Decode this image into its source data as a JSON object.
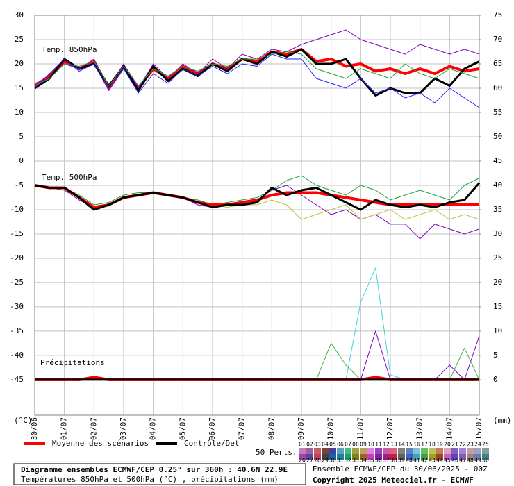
{
  "chart_data": {
    "type": "line",
    "panel_labels": [
      "Temp. 850hPa",
      "Temp. 500hPa",
      "Précipitations"
    ],
    "ylabel": "(°C)",
    "y2label": "(mm)",
    "categories": [
      "30/06",
      null,
      "01/07",
      null,
      "02/07",
      null,
      "03/07",
      null,
      "04/07",
      null,
      "05/07",
      null,
      "06/07",
      null,
      "07/07",
      null,
      "08/07",
      null,
      "09/07",
      null,
      "10/07",
      null,
      "11/07",
      null,
      "12/07",
      null,
      "13/07",
      null,
      "14/07",
      null,
      "15/07"
    ],
    "ylim": [
      -52.3,
      30
    ],
    "yticks": [
      30,
      25,
      20,
      15,
      10,
      5,
      0,
      -5,
      -10,
      -15,
      -20,
      -25,
      -30,
      -35,
      -40,
      -45
    ],
    "y2lim": [
      -7.3,
      75
    ],
    "y2ticks": [
      75,
      70,
      65,
      60,
      55,
      50,
      45,
      40,
      35,
      30,
      25,
      20,
      15,
      10,
      5,
      0
    ],
    "grid": true,
    "legend": [
      {
        "label": "Moyenne des scénarios",
        "color": "#ff0000"
      },
      {
        "label": "Contrôle/Det",
        "color": "#000000"
      }
    ],
    "series": [
      {
        "color": "#ff0000",
        "width": 4,
        "values": [
          15.5,
          17.5,
          20.5,
          19,
          20.5,
          15,
          19.5,
          15,
          19,
          17,
          19.5,
          18,
          20,
          19,
          21,
          20.5,
          22.5,
          22,
          23,
          20.5,
          21,
          19.5,
          20,
          18.5,
          19,
          18,
          19,
          18,
          19.5,
          18.5,
          19
        ]
      },
      {
        "color": "#000000",
        "width": 3,
        "values": [
          15,
          17,
          21,
          19,
          20,
          15.5,
          19.5,
          14.5,
          19.5,
          16.5,
          19,
          17.5,
          20,
          18.5,
          21,
          20,
          22.5,
          21.5,
          23,
          20,
          20,
          21,
          17,
          13.5,
          15,
          14,
          14,
          17,
          15.5,
          19,
          20.5
        ]
      },
      {
        "color": "#8000c0",
        "width": 1,
        "values": [
          16,
          17,
          20,
          19,
          21,
          15,
          20,
          15,
          20,
          17,
          20,
          18,
          21,
          19,
          22,
          21,
          23,
          22.5,
          24,
          25,
          26,
          27,
          25,
          24,
          23,
          22,
          24,
          23,
          22,
          23,
          22
        ]
      },
      {
        "color": "#2020ff",
        "width": 1,
        "values": [
          15,
          18,
          21,
          18.5,
          20,
          14.5,
          19,
          14,
          18,
          16,
          19,
          17.5,
          19.5,
          18,
          20,
          19.5,
          22,
          21,
          21,
          17,
          16,
          15,
          17,
          14,
          15,
          13,
          14,
          12,
          15,
          13,
          11
        ]
      },
      {
        "color": "#20a040",
        "width": 1,
        "values": [
          15.5,
          17,
          20,
          19.5,
          20.5,
          15.5,
          19.5,
          15.5,
          19,
          17.5,
          19.5,
          18.5,
          20,
          19.5,
          21,
          21,
          22,
          22.5,
          22,
          19,
          18,
          17,
          19,
          18,
          17,
          20,
          18,
          17,
          19,
          18,
          17
        ]
      },
      {
        "color": "#8000c0",
        "width": 1,
        "values": [
          -5,
          -5.5,
          -6,
          -8,
          -9.5,
          -9,
          -7.5,
          -7,
          -6.5,
          -7,
          -7.5,
          -9,
          -9.5,
          -9,
          -8.5,
          -8,
          -6,
          -5,
          -7,
          -9,
          -11,
          -10,
          -12,
          -11,
          -13,
          -13,
          -16,
          -13,
          -14,
          -15,
          -14
        ]
      },
      {
        "color": "#20a040",
        "width": 1,
        "values": [
          -5,
          -5.5,
          -5.5,
          -7,
          -9,
          -8.5,
          -7,
          -6.5,
          -6.5,
          -7,
          -7.5,
          -8,
          -9,
          -8.5,
          -8,
          -7.5,
          -6,
          -4,
          -3,
          -5,
          -6,
          -7,
          -5,
          -6,
          -8,
          -7,
          -6,
          -7,
          -8,
          -5,
          -3.5
        ]
      },
      {
        "color": "#c0c040",
        "width": 1,
        "values": [
          -5,
          -5.5,
          -5.5,
          -7.5,
          -9.5,
          -9,
          -7.5,
          -7,
          -6.5,
          -7,
          -7.5,
          -8.5,
          -9,
          -9.5,
          -9,
          -9,
          -8,
          -9,
          -12,
          -11,
          -10,
          -9,
          -12,
          -11,
          -10,
          -12,
          -11,
          -10,
          -12,
          -11,
          -12
        ]
      },
      {
        "color": "#ff0000",
        "width": 4,
        "values": [
          -5,
          -5.5,
          -5.5,
          -7.5,
          -9.5,
          -9,
          -7.5,
          -7,
          -6.5,
          -7,
          -7.5,
          -8.5,
          -9,
          -9,
          -8.5,
          -8,
          -7,
          -6.5,
          -6.5,
          -6.5,
          -7,
          -7.5,
          -8,
          -8.5,
          -9,
          -9,
          -9,
          -9,
          -9,
          -9,
          -9
        ]
      },
      {
        "color": "#000000",
        "width": 3,
        "values": [
          -5,
          -5.5,
          -5.5,
          -7.5,
          -10,
          -9,
          -7.5,
          -7,
          -6.5,
          -7,
          -7.5,
          -8.5,
          -9.5,
          -9,
          -9,
          -8.5,
          -5.5,
          -7,
          -6,
          -5.5,
          -7,
          -8.5,
          -10,
          -8,
          -9,
          -9.5,
          -9,
          -9.5,
          -8.5,
          -8,
          -4.5
        ]
      },
      {
        "color": "#40d0e0",
        "width": 1,
        "axis": "y2",
        "values": [
          0,
          0,
          0,
          0,
          0,
          0,
          0,
          0,
          0,
          0,
          0,
          0,
          0,
          0,
          0,
          0,
          0,
          0,
          0,
          0,
          0,
          0,
          16,
          23,
          1,
          0,
          0,
          0,
          0,
          0,
          0
        ]
      },
      {
        "color": "#8000c0",
        "width": 1,
        "axis": "y2",
        "values": [
          0,
          0,
          0,
          0,
          0,
          0,
          0,
          0,
          0,
          0,
          0,
          0,
          0,
          0,
          0,
          0,
          0,
          0,
          0,
          0,
          0,
          0,
          0,
          10,
          0,
          0,
          0,
          0,
          3,
          0,
          9
        ]
      },
      {
        "color": "#40b040",
        "width": 1,
        "axis": "y2",
        "values": [
          0,
          0,
          0,
          0,
          0,
          0,
          0,
          0,
          0,
          0,
          0,
          0,
          0,
          0,
          0,
          0,
          0,
          0,
          0,
          0,
          7.5,
          3,
          0,
          0,
          0,
          0,
          0,
          0,
          0,
          6.5,
          0
        ]
      },
      {
        "color": "#ff0000",
        "width": 4,
        "axis": "y2",
        "values": [
          0,
          0,
          0,
          0,
          0.5,
          0,
          0,
          0,
          0,
          0,
          0,
          0,
          0,
          0,
          0,
          0,
          0,
          0,
          0,
          0,
          0,
          0,
          0,
          0.5,
          0,
          0,
          0,
          0,
          0,
          0,
          0
        ]
      },
      {
        "color": "#000000",
        "width": 3,
        "axis": "y2",
        "values": [
          0,
          0,
          0,
          0,
          0,
          0,
          0,
          0,
          0,
          0,
          0,
          0,
          0,
          0,
          0,
          0,
          0,
          0,
          0,
          0,
          0,
          0,
          0,
          0,
          0,
          0,
          0,
          0,
          0,
          0,
          0
        ]
      }
    ],
    "perturbations_label": "50 Perts.",
    "perturbations": [
      {
        "label": "01",
        "color": "#c080c0"
      },
      {
        "label": "02",
        "color": "#a060a0"
      },
      {
        "label": "03",
        "color": "#c06060"
      },
      {
        "label": "04",
        "color": "#804040"
      },
      {
        "label": "05",
        "color": "#4040a0"
      },
      {
        "label": "06",
        "color": "#60a0c0"
      },
      {
        "label": "07",
        "color": "#40c080"
      },
      {
        "label": "08",
        "color": "#a0a040"
      },
      {
        "label": "09",
        "color": "#c0a060"
      },
      {
        "label": "10",
        "color": "#e080e0"
      },
      {
        "label": "11",
        "color": "#a040c0"
      },
      {
        "label": "12",
        "color": "#c060a0"
      },
      {
        "label": "13",
        "color": "#e06080"
      },
      {
        "label": "14",
        "color": "#808080"
      },
      {
        "label": "15",
        "color": "#6080c0"
      },
      {
        "label": "16",
        "color": "#80c0e0"
      },
      {
        "label": "17",
        "color": "#60c060"
      },
      {
        "label": "18",
        "color": "#c0c060"
      },
      {
        "label": "19",
        "color": "#c08060"
      },
      {
        "label": "20",
        "color": "#e0a0c0"
      },
      {
        "label": "21",
        "color": "#8060c0"
      },
      {
        "label": "22",
        "color": "#a080e0"
      },
      {
        "label": "23",
        "color": "#c0a0a0"
      },
      {
        "label": "24",
        "color": "#a0a0c0"
      },
      {
        "label": "25",
        "color": "#80a0a0"
      },
      {
        "label": "26",
        "color": "#a040a0"
      },
      {
        "label": "27",
        "color": "#6040a0"
      },
      {
        "label": "28",
        "color": "#c04060"
      },
      {
        "label": "29",
        "color": "#404040"
      },
      {
        "label": "30",
        "color": "#2060a0"
      },
      {
        "label": "31",
        "color": "#2080a0"
      },
      {
        "label": "32",
        "color": "#20a060"
      },
      {
        "label": "33",
        "color": "#808020"
      },
      {
        "label": "34",
        "color": "#a06020"
      },
      {
        "label": "35",
        "color": "#c040c0"
      },
      {
        "label": "36",
        "color": "#8020a0"
      },
      {
        "label": "37",
        "color": "#a02080"
      },
      {
        "label": "38",
        "color": "#c02040"
      },
      {
        "label": "39",
        "color": "#606060"
      },
      {
        "label": "40",
        "color": "#4060c0"
      },
      {
        "label": "41",
        "color": "#40a0c0"
      },
      {
        "label": "42",
        "color": "#40a040"
      },
      {
        "label": "43",
        "color": "#a0a020"
      },
      {
        "label": "44",
        "color": "#a04020"
      },
      {
        "label": "45",
        "color": "#c060c0"
      },
      {
        "label": "46",
        "color": "#6040c0"
      },
      {
        "label": "47",
        "color": "#8060a0"
      },
      {
        "label": "48",
        "color": "#a08080"
      },
      {
        "label": "49",
        "color": "#6080a0"
      },
      {
        "label": "50",
        "color": "#408080"
      }
    ],
    "footer_left": [
      "Diagramme ensembles ECMWF/CEP 0.25° sur 360h : 40.6N 22.9E",
      "Températures 850hPa et 500hPa (°C) , précipitations (mm)"
    ],
    "footer_right": [
      "Ensemble ECMWF/CEP du 30/06/2025 - 00Z",
      "Copyright 2025 Meteociel.fr - ECMWF"
    ]
  }
}
